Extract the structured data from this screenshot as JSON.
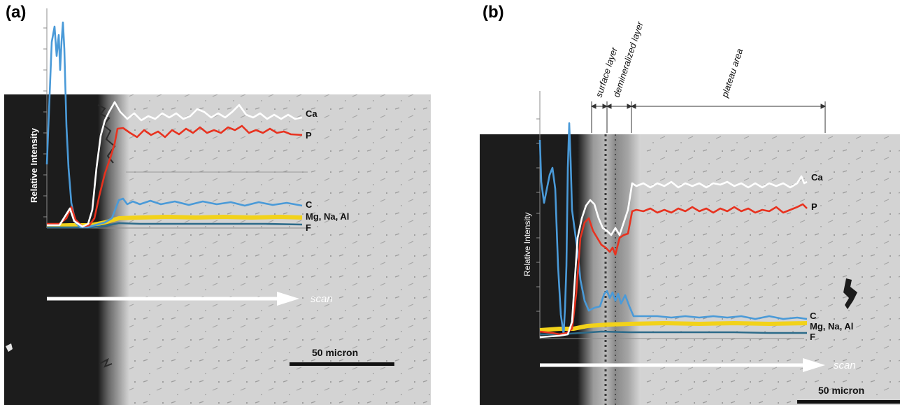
{
  "panels": [
    {
      "label": "(a)",
      "axis_title": "Relative Intensity",
      "scan_label": "scan",
      "scale_bar": "50 micron",
      "series_labels": [
        "Ca",
        "P",
        "C",
        "Mg, Na, Al",
        "F"
      ]
    },
    {
      "label": "(b)",
      "axis_title": "Relative Intensity",
      "scan_label": "scan",
      "scale_bar": "50 micron",
      "series_labels": [
        "Ca",
        "P",
        "C",
        "Mg, Na, Al",
        "F"
      ],
      "regions": [
        "surface layer",
        "demineralized layer",
        "plateau area"
      ]
    }
  ],
  "colors": {
    "Ca": "#ffffff",
    "P": "#e8321f",
    "C": "#4a9ad8",
    "MgNaAl": "#f2d21a",
    "F": "#2d6b8a",
    "resin": "#1c1c1c",
    "enamel": "#d2d2d2"
  }
}
